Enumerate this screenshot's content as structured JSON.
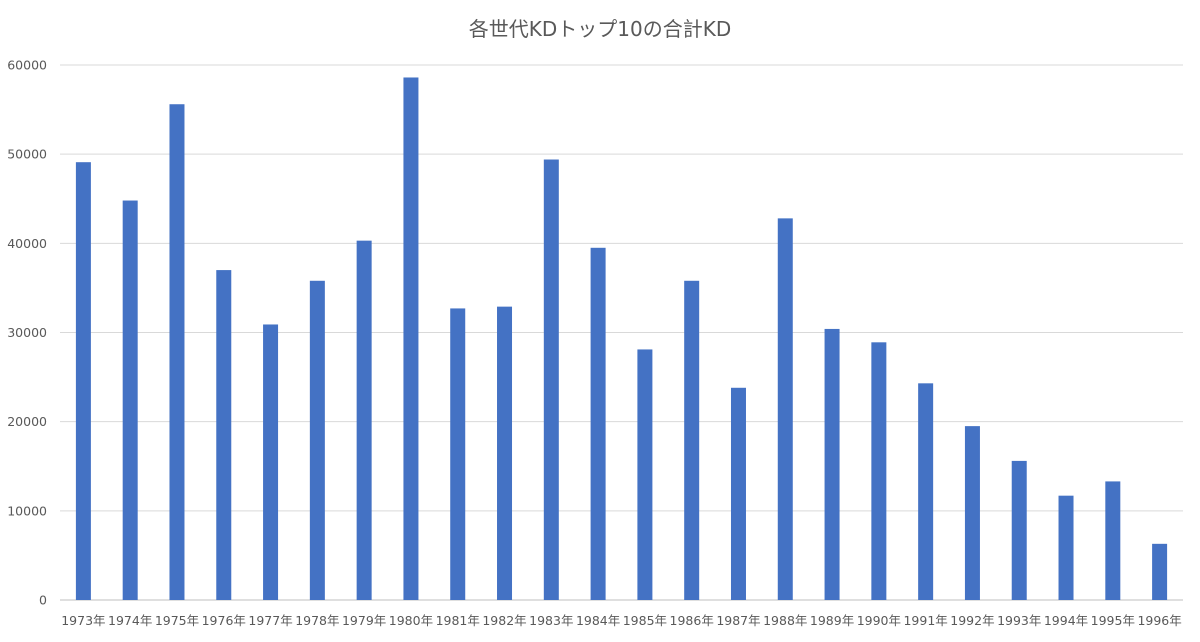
{
  "chart_data": {
    "type": "bar",
    "title": "各世代KDトップ10の合計KD",
    "xlabel": "",
    "ylabel": "",
    "categories": [
      "1973年",
      "1974年",
      "1975年",
      "1976年",
      "1977年",
      "1978年",
      "1979年",
      "1980年",
      "1981年",
      "1982年",
      "1983年",
      "1984年",
      "1985年",
      "1986年",
      "1987年",
      "1988年",
      "1989年",
      "1990年",
      "1991年",
      "1992年",
      "1993年",
      "1994年",
      "1995年",
      "1996年"
    ],
    "values": [
      49100,
      44800,
      55600,
      37000,
      30900,
      35800,
      40300,
      58600,
      32700,
      32900,
      49400,
      39500,
      28100,
      35800,
      23800,
      42800,
      30400,
      28900,
      24300,
      19500,
      15600,
      11700,
      13300,
      6300
    ],
    "ylim": [
      0,
      60000
    ],
    "yticks": [
      "0",
      "10000",
      "20000",
      "30000",
      "40000",
      "50000",
      "60000"
    ],
    "grid": true,
    "legend": "none",
    "bar_color": "#4472c4"
  }
}
